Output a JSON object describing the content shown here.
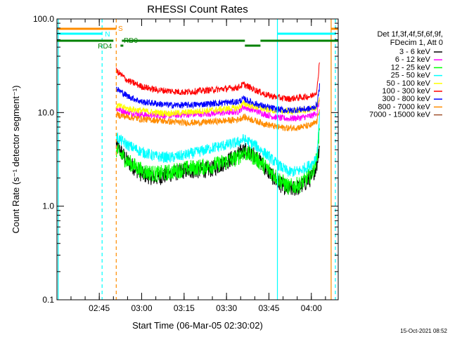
{
  "chart_data": {
    "type": "line",
    "title": "RHESSI Count Rates",
    "xlabel": "Start Time (06-Mar-05 02:30:02)",
    "ylabel": "Count Rate (s⁻¹ detector segment⁻¹)",
    "yscale": "log",
    "ylim": [
      0.1,
      100
    ],
    "xlim": [
      "02:30:02",
      "04:09:30"
    ],
    "x_ticks": [
      "02:45",
      "03:00",
      "03:15",
      "03:30",
      "03:45",
      "04:00"
    ],
    "y_ticks": [
      "0.1",
      "1.0",
      "10.0",
      "100.0"
    ],
    "grid": false,
    "legend_header": [
      "Det 1f,3f,4f,5f,6f,9f,",
      "FDecim 1, Att 0"
    ],
    "legend_placement": "right",
    "footer_date": "15-Oct-2021 08:52",
    "x": [
      "02:51",
      "02:55",
      "03:00",
      "03:05",
      "03:10",
      "03:15",
      "03:20",
      "03:25",
      "03:30",
      "03:34",
      "03:36",
      "03:40",
      "03:44",
      "03:48",
      "03:52",
      "03:56",
      "04:00",
      "04:02",
      "04:03"
    ],
    "series": [
      {
        "name": "3 - 6 keV",
        "color": "#000000",
        "values": [
          4.5,
          3.0,
          2.2,
          2.0,
          2.2,
          2.4,
          2.4,
          2.5,
          3.0,
          3.5,
          4.0,
          3.5,
          2.5,
          1.8,
          1.5,
          1.6,
          2.0,
          2.8,
          5.0
        ]
      },
      {
        "name": "6 - 12 keV",
        "color": "#ff00ff",
        "values": [
          11.0,
          10.0,
          9.5,
          9.3,
          9.3,
          9.5,
          9.6,
          9.8,
          10.0,
          10.2,
          11.5,
          10.5,
          9.5,
          8.8,
          8.6,
          8.8,
          9.2,
          10.0,
          14.0
        ]
      },
      {
        "name": "12 - 25 keV",
        "color": "#00ff00",
        "values": [
          4.0,
          3.0,
          2.4,
          2.2,
          2.3,
          2.5,
          2.6,
          2.7,
          3.0,
          3.3,
          3.8,
          3.3,
          2.6,
          2.0,
          1.6,
          1.7,
          2.2,
          3.2,
          8.0
        ]
      },
      {
        "name": "25 - 50 keV",
        "color": "#00ffff",
        "values": [
          5.5,
          4.5,
          3.8,
          3.4,
          3.3,
          3.5,
          3.8,
          4.2,
          4.5,
          4.8,
          5.2,
          4.5,
          3.6,
          2.8,
          2.3,
          2.4,
          2.8,
          3.5,
          10.0
        ]
      },
      {
        "name": "50 - 100 keV",
        "color": "#ffff00",
        "values": [
          12.0,
          11.0,
          10.5,
          10.0,
          9.8,
          10.0,
          10.3,
          10.6,
          11.0,
          11.2,
          12.5,
          11.5,
          10.8,
          10.5,
          10.3,
          10.5,
          10.8,
          11.5,
          15.0
        ]
      },
      {
        "name": "100 - 300 keV",
        "color": "#ff0000",
        "values": [
          28.0,
          22.0,
          19.0,
          17.5,
          17.0,
          16.5,
          17.0,
          17.5,
          18.0,
          18.5,
          20.0,
          17.5,
          15.5,
          14.5,
          14.0,
          14.5,
          15.0,
          17.0,
          40.0
        ]
      },
      {
        "name": "300 - 800 keV",
        "color": "#0000ff",
        "values": [
          18.0,
          15.0,
          13.0,
          12.5,
          12.0,
          12.0,
          12.2,
          12.5,
          12.8,
          13.0,
          14.0,
          12.5,
          11.5,
          10.8,
          10.5,
          10.8,
          11.0,
          12.0,
          20.0
        ]
      },
      {
        "name": "800 - 7000 keV",
        "color": "#ff8c00",
        "values": [
          9.5,
          9.0,
          8.5,
          8.3,
          8.0,
          7.8,
          7.8,
          8.0,
          8.2,
          8.4,
          9.0,
          8.2,
          7.5,
          7.0,
          6.8,
          7.0,
          7.3,
          8.0,
          12.0
        ]
      },
      {
        "name": "7000 - 15000 keV",
        "color": "#a0522d",
        "values": [
          null,
          null,
          null,
          null,
          null,
          null,
          null,
          null,
          null,
          null,
          null,
          null,
          null,
          null,
          null,
          null,
          null,
          null,
          null
        ]
      }
    ],
    "annotations": [
      {
        "label": "S",
        "color": "#ff8c00"
      },
      {
        "label": "N",
        "color": "#00ffff"
      },
      {
        "label": "RD4",
        "color": "#008000"
      },
      {
        "label": "RD0",
        "color": "#008000"
      }
    ],
    "marker_lines": [
      {
        "time": "02:30:30",
        "color": "#00ffff",
        "style": "solid"
      },
      {
        "time": "02:46:00",
        "color": "#00ffff",
        "style": "dashed"
      },
      {
        "time": "02:51:00",
        "color": "#ff8c00",
        "style": "dashed"
      },
      {
        "time": "03:48:00",
        "color": "#00ffff",
        "style": "solid"
      },
      {
        "time": "04:07:00",
        "color": "#ff8c00",
        "style": "solid"
      },
      {
        "time": "04:08:30",
        "color": "#00ffff",
        "style": "dashed"
      }
    ]
  }
}
